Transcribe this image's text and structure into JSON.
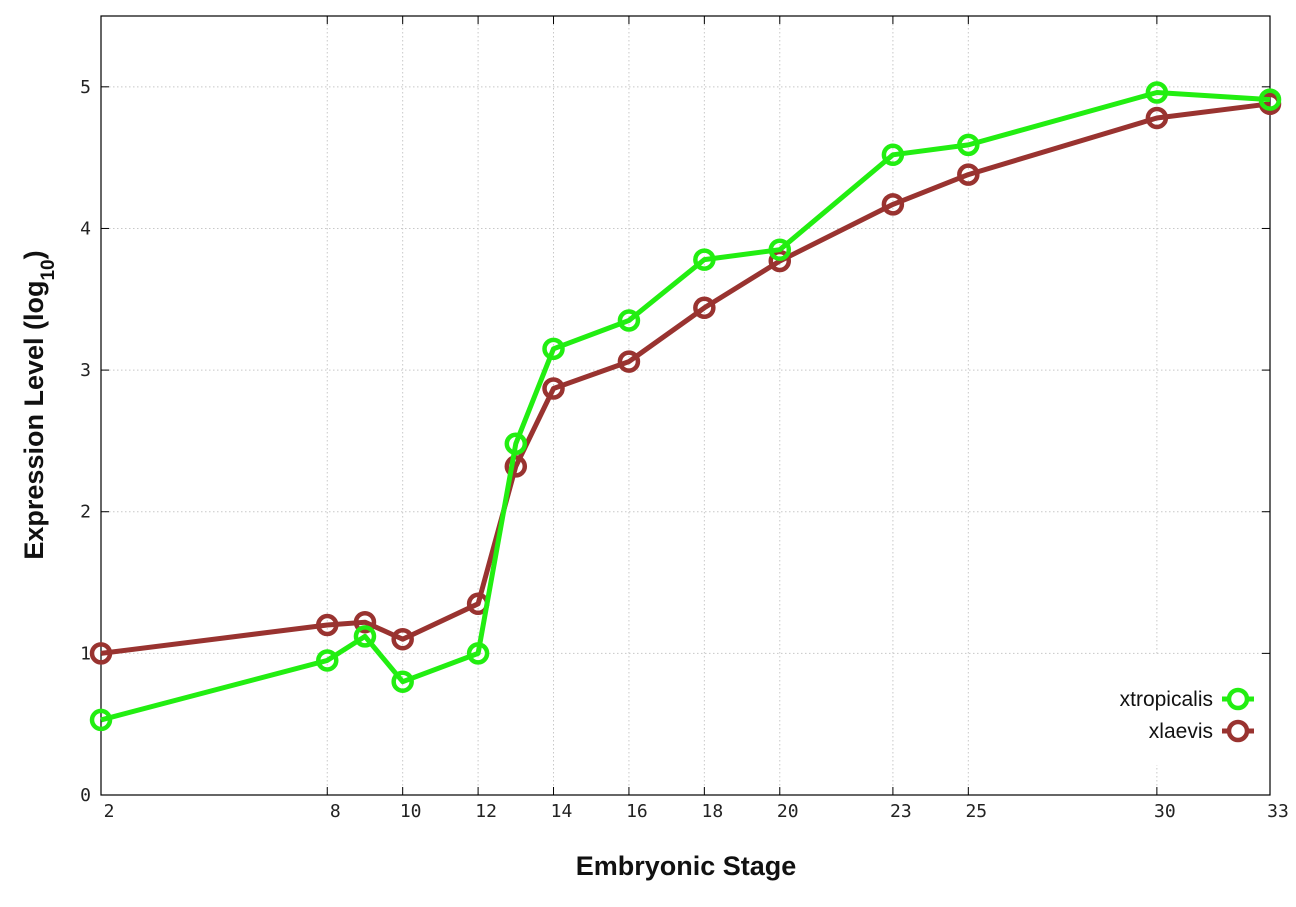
{
  "chart_data": {
    "type": "line",
    "xlabel": "Embryonic Stage",
    "ylabel_main": "Expression Level (log",
    "ylabel_sub": "10",
    "ylabel_close": ")",
    "xlim": [
      2,
      33
    ],
    "ylim": [
      0,
      5.5
    ],
    "xticks": [
      2,
      8,
      10,
      12,
      14,
      16,
      18,
      20,
      23,
      25,
      30,
      33
    ],
    "xtick_labels": [
      "2",
      "8",
      "10",
      "12",
      "14",
      "16",
      "18",
      "20",
      "23",
      "25",
      "30",
      "33"
    ],
    "yticks": [
      0,
      1,
      2,
      3,
      4,
      5
    ],
    "ytick_labels": [
      "0",
      "1",
      "2",
      "3",
      "4",
      "5"
    ],
    "grid": true,
    "legend_position": "bottom-right",
    "series": [
      {
        "name": "xtropicalis",
        "color": "#22ee11",
        "x": [
          2,
          8,
          9,
          10,
          12,
          13,
          14,
          16,
          18,
          20,
          23,
          25,
          30,
          33
        ],
        "y": [
          0.53,
          0.95,
          1.12,
          0.8,
          1.0,
          2.48,
          3.15,
          3.35,
          3.78,
          3.85,
          4.52,
          4.59,
          4.96,
          4.91
        ]
      },
      {
        "name": "xlaevis",
        "color": "#993330",
        "x": [
          2,
          8,
          9,
          10,
          12,
          13,
          14,
          16,
          18,
          20,
          23,
          25,
          30,
          33
        ],
        "y": [
          1.0,
          1.2,
          1.22,
          1.1,
          1.35,
          2.32,
          2.87,
          3.06,
          3.44,
          3.77,
          4.17,
          4.38,
          4.78,
          4.88
        ]
      }
    ]
  }
}
